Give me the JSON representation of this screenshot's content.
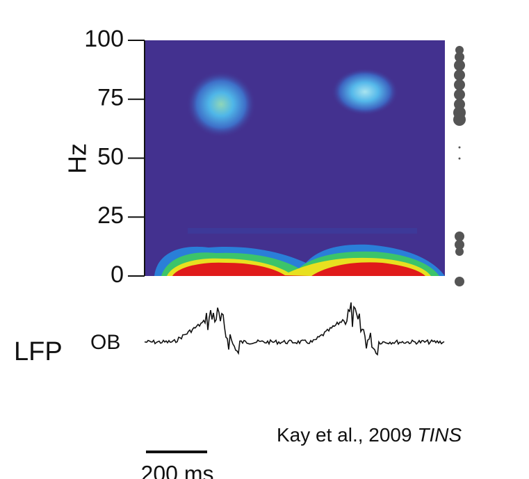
{
  "chart_data": {
    "type": "spectrogram",
    "ylabel": "Hz",
    "ylim": [
      0,
      100
    ],
    "yticks": [
      0,
      25,
      50,
      75,
      100
    ],
    "trace_label": "LFP",
    "trace_sublabel": "OB",
    "scale_bar_label": "200 ms",
    "citation": "Kay et al., 2009",
    "citation_journal": "TINS"
  }
}
